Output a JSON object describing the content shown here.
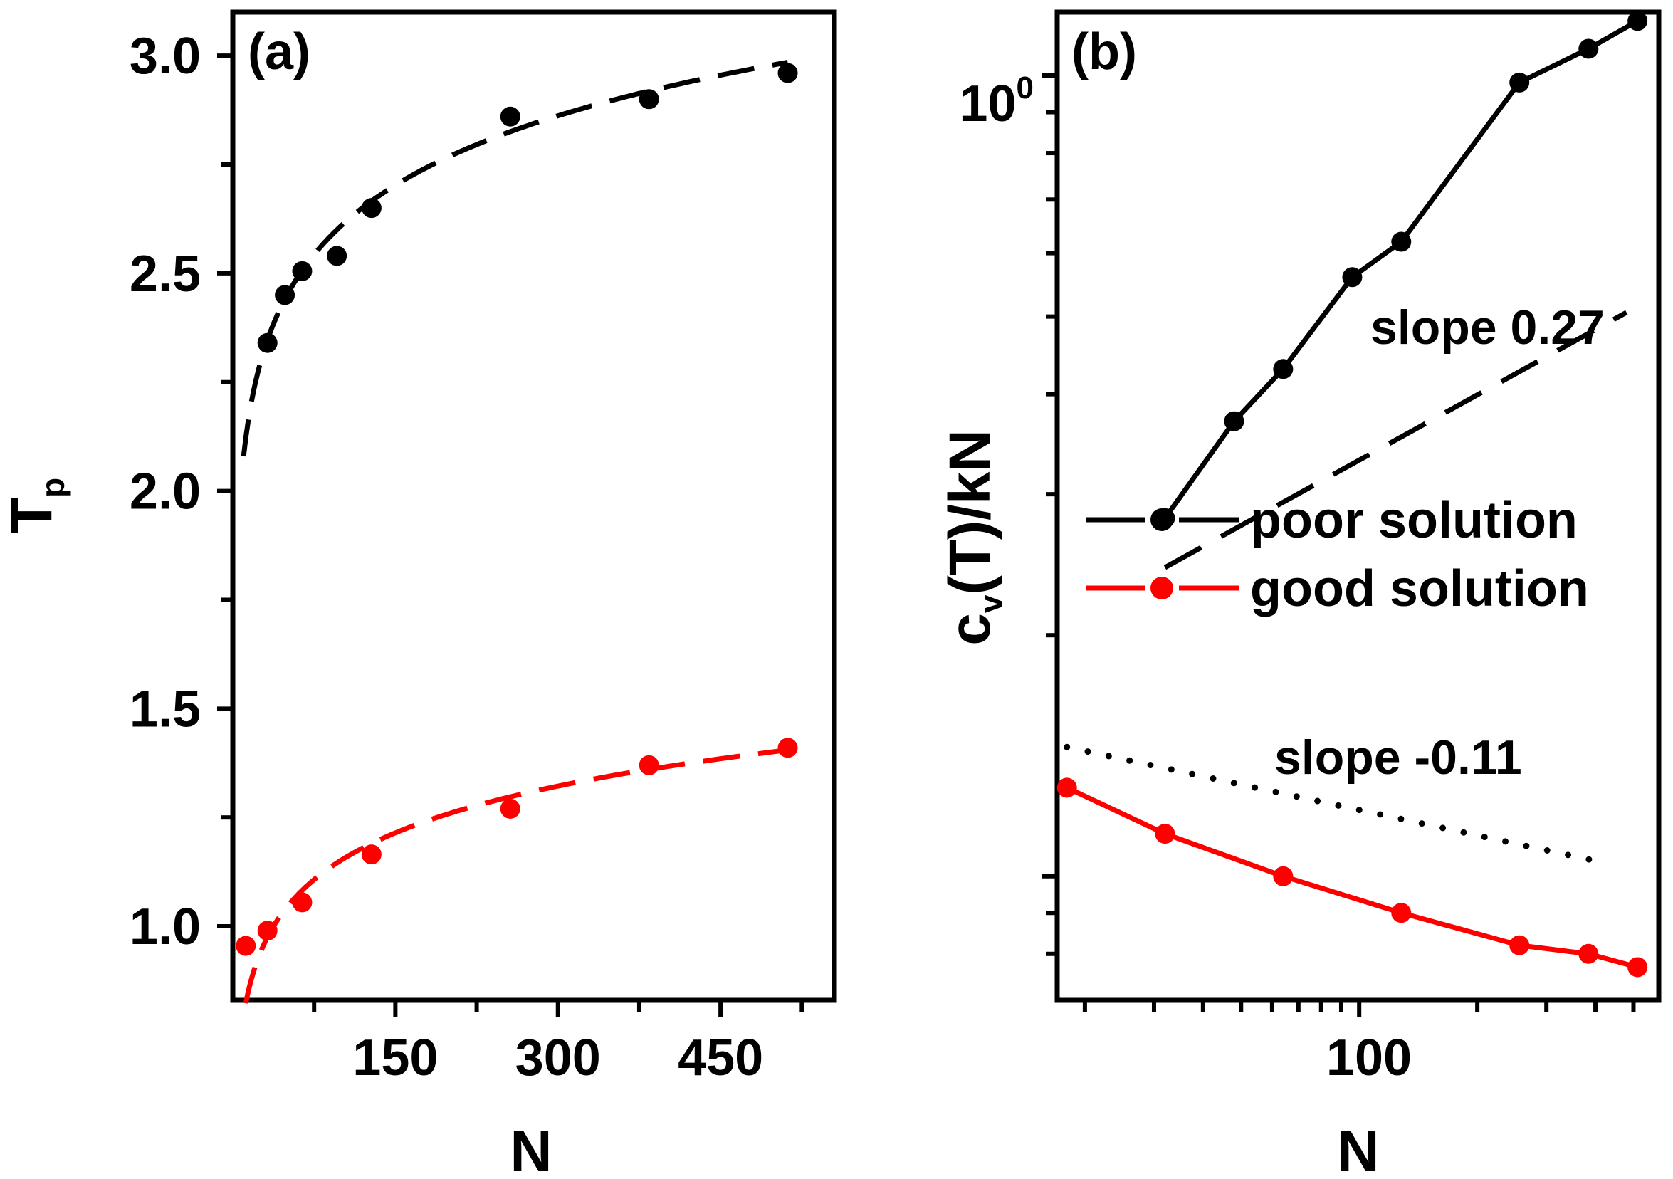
{
  "chart_data": [
    {
      "panel": "(a)",
      "type": "scatter",
      "xlabel": "N",
      "ylabel": "T",
      "ylabel_sub": "p",
      "xlim": [
        0,
        555
      ],
      "ylim": [
        0.83,
        3.1
      ],
      "xticks": [
        150,
        300,
        450
      ],
      "yticks": [
        1.0,
        1.5,
        2.0,
        2.5,
        3.0
      ],
      "ytick_labels": [
        "1.0",
        "1.5",
        "2.0",
        "2.5",
        "3.0"
      ],
      "series": [
        {
          "name": "poor solution",
          "color": "#000000",
          "x": [
            32,
            48,
            64,
            96,
            128,
            256,
            384,
            512
          ],
          "y": [
            2.34,
            2.45,
            2.505,
            2.54,
            2.65,
            2.86,
            2.9,
            2.96
          ],
          "fit_x_range": [
            10,
            512
          ],
          "fit": [
            1.55,
            0.23
          ]
        },
        {
          "name": "good solution",
          "color": "#ff0000",
          "x": [
            12,
            32,
            64,
            128,
            256,
            384,
            512
          ],
          "y": [
            0.955,
            0.99,
            1.055,
            1.165,
            1.27,
            1.37,
            1.41
          ],
          "fit_x_range": [
            12,
            512
          ],
          "fit": [
            0.438,
            0.155
          ]
        }
      ]
    },
    {
      "panel": "(b)",
      "type": "line",
      "scale": "log-log",
      "xlabel": "N",
      "ylabel": "c",
      "ylabel_sub": "v",
      "ylabel_rest": "(T)/kN",
      "xlim": [
        17,
        580
      ],
      "ylim": [
        0.07,
        1.2
      ],
      "xtick_label": "100",
      "ytick_label_base": "10",
      "ytick_label_exp": "0",
      "series": [
        {
          "name": "poor solution",
          "color": "#000000",
          "x": [
            32,
            48,
            64,
            96,
            128,
            256,
            384,
            512
          ],
          "y": [
            0.28,
            0.37,
            0.43,
            0.56,
            0.62,
            0.98,
            1.08,
            1.17
          ]
        },
        {
          "name": "good solution",
          "color": "#ff0000",
          "x": [
            18,
            32,
            64,
            128,
            256,
            384,
            512
          ],
          "y": [
            0.129,
            0.113,
            0.1,
            0.09,
            0.082,
            0.08,
            0.077
          ]
        }
      ],
      "reference_lines": [
        {
          "label": "slope 0.27",
          "slope": 0.27,
          "x": [
            32,
            480
          ],
          "y": [
            0.243,
            0.506
          ],
          "style": "dashed"
        },
        {
          "label": "slope -0.11",
          "slope": -0.11,
          "x": [
            18,
            420
          ],
          "y": [
            0.145,
            0.104
          ],
          "style": "dotted"
        }
      ],
      "legend": [
        "poor solution",
        "good solution"
      ]
    }
  ]
}
